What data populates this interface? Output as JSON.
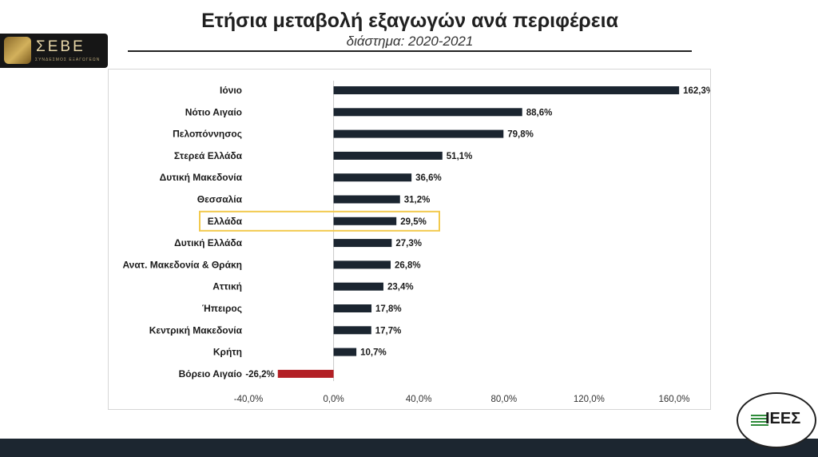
{
  "header": {
    "title": "Ετήσια μεταβολή εξαγωγών ανά περιφέρεια",
    "subtitle": "διάστημα: 2020-2021"
  },
  "logos": {
    "left_text": "ΣΕΒΕ",
    "left_subtext": "ΣΥΝΔΕΣΜΟΣ ΕΞΑΓΩΓΕΩΝ",
    "right_text": "ΙΕΕΣ"
  },
  "chart_data": {
    "type": "bar",
    "orientation": "horizontal",
    "categories": [
      "Ιόνιο",
      "Νότιο Αιγαίο",
      "Πελοπόννησος",
      "Στερεά Ελλάδα",
      "Δυτική Μακεδονία",
      "Θεσσαλία",
      "Ελλάδα",
      "Δυτική Ελλάδα",
      "Ανατ. Μακεδονία & Θράκη",
      "Αττική",
      "Ήπειρος",
      "Κεντρική Μακεδονία",
      "Κρήτη",
      "Βόρειο Αιγαίο"
    ],
    "values": [
      162.3,
      88.6,
      79.8,
      51.1,
      36.6,
      31.2,
      29.5,
      27.3,
      26.8,
      23.4,
      17.8,
      17.7,
      10.7,
      -26.2
    ],
    "data_labels": [
      "162,3%",
      "88,6%",
      "79,8%",
      "51,1%",
      "36,6%",
      "31,2%",
      "29,5%",
      "27,3%",
      "26,8%",
      "23,4%",
      "17,8%",
      "17,7%",
      "10,7%",
      "-26,2%"
    ],
    "highlighted_category": "Ελλάδα",
    "xlim": [
      -40,
      160
    ],
    "xticks": [
      -40,
      0,
      40,
      80,
      120,
      160
    ],
    "xtick_labels": [
      "-40,0%",
      "0,0%",
      "40,0%",
      "80,0%",
      "120,0%",
      "160,0%"
    ],
    "grid": false,
    "colors": {
      "positive": "#1b2530",
      "negative": "#b32025",
      "highlight_box": "#f2c94c"
    }
  }
}
